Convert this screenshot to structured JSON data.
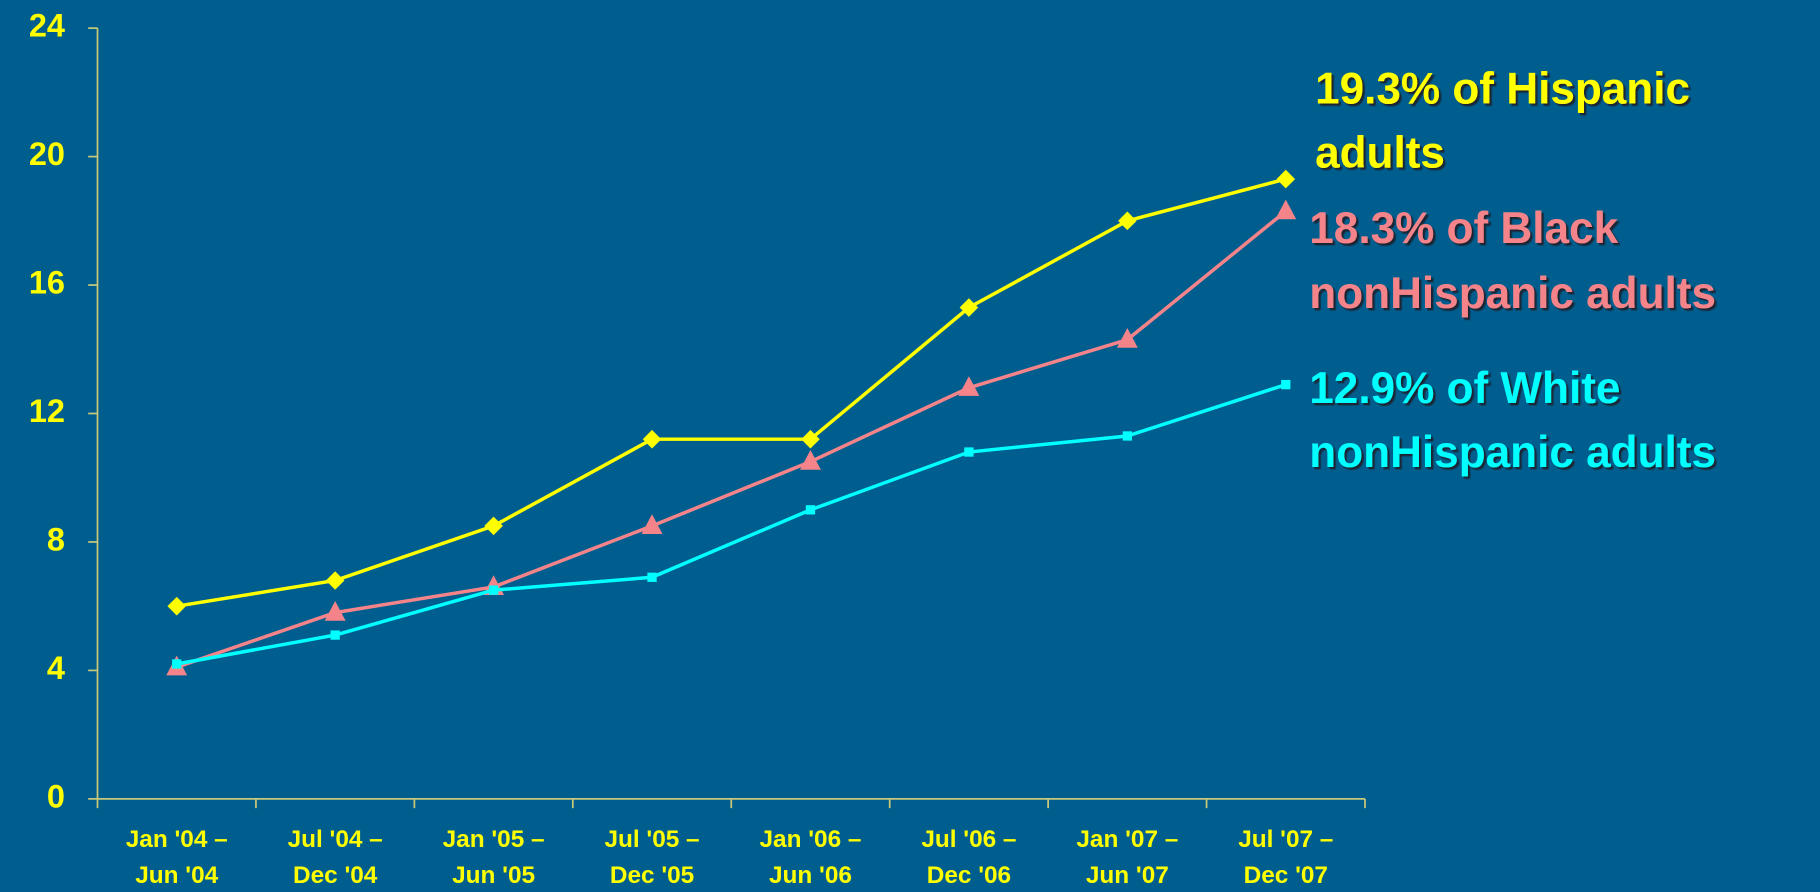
{
  "chart_data": {
    "type": "line",
    "categories": [
      [
        "Jan '04 –",
        "Jun '04"
      ],
      [
        "Jul '04 –",
        "Dec '04"
      ],
      [
        "Jan '05 –",
        "Jun '05"
      ],
      [
        "Jul '05 –",
        "Dec '05"
      ],
      [
        "Jan '06 –",
        "Jun '06"
      ],
      [
        "Jul '06 –",
        "Dec '06"
      ],
      [
        "Jan '07 –",
        "Jun '07"
      ],
      [
        "Jul '07 –",
        "Dec '07"
      ]
    ],
    "series": [
      {
        "label": [
          "19.3% of Hispanic",
          "adults"
        ],
        "color": "#ffff00",
        "marker": "diamond",
        "values": [
          6.0,
          6.8,
          8.5,
          11.2,
          11.2,
          15.3,
          18.0,
          19.3
        ]
      },
      {
        "label": [
          "18.3% of Black",
          "nonHispanic adults"
        ],
        "color": "#f4848a",
        "marker": "triangle",
        "values": [
          4.1,
          5.8,
          6.6,
          8.5,
          10.5,
          12.8,
          14.3,
          18.3
        ]
      },
      {
        "label": [
          "12.9% of White",
          "nonHispanic adults"
        ],
        "color": "#00ffff",
        "marker": "square",
        "values": [
          4.2,
          5.1,
          6.5,
          6.9,
          9.0,
          10.8,
          11.3,
          12.9
        ]
      }
    ],
    "ylim": [
      0,
      24
    ],
    "yticks": [
      0,
      4,
      8,
      12,
      16,
      20,
      24
    ]
  }
}
